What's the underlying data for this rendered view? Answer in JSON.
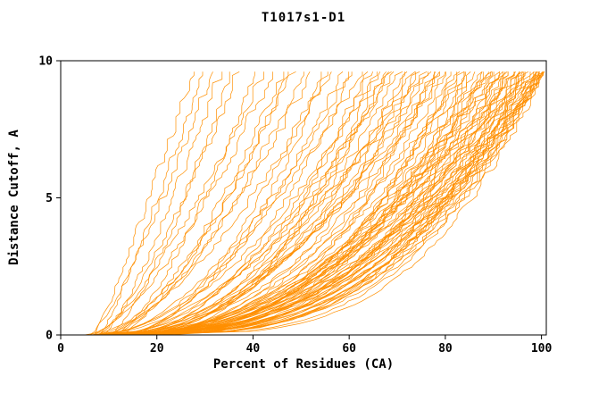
{
  "page": {
    "title": "T1017s1-D1"
  },
  "chart_data": {
    "type": "line",
    "title": "T1017s1-D1",
    "xlabel": "Percent of Residues (CA)",
    "ylabel": "Distance Cutoff, A",
    "xlim": [
      0,
      101
    ],
    "ylim": [
      0,
      10
    ],
    "xticks": [
      0,
      20,
      40,
      60,
      80,
      100
    ],
    "yticks": [
      0,
      5,
      10
    ],
    "grid": false,
    "legend": "none",
    "line_color": "#FF8F00",
    "axis_color": "#000000",
    "background_color": "#FFFFFF",
    "curve_y_max": 9.6,
    "curve_note": "Each curve is one model: percent of CA residues (x) under distance cutoff (y). Curves parameterized as [x_at_y0, x_at_ytop, shape_exponent].",
    "curves": [
      [
        7,
        27,
        1.15
      ],
      [
        8,
        29,
        1.2
      ],
      [
        6,
        31,
        1.3
      ],
      [
        9,
        33,
        1.25
      ],
      [
        10,
        35,
        1.4
      ],
      [
        8,
        37,
        1.3
      ],
      [
        11,
        40,
        1.5
      ],
      [
        7,
        42,
        1.35
      ],
      [
        6,
        44,
        1.5
      ],
      [
        9,
        46,
        1.6
      ],
      [
        12,
        48,
        1.4
      ],
      [
        8,
        50,
        1.7
      ],
      [
        10,
        52,
        1.5
      ],
      [
        13,
        54,
        1.8
      ],
      [
        7,
        56,
        1.6
      ],
      [
        11,
        58,
        1.9
      ],
      [
        9,
        60,
        1.7
      ],
      [
        14,
        60,
        2.0
      ],
      [
        5,
        47,
        1.9
      ],
      [
        10,
        55,
        2.1
      ],
      [
        8,
        62,
        1.8
      ],
      [
        12,
        64,
        2.0
      ],
      [
        6,
        66,
        1.9
      ],
      [
        10,
        68,
        2.2
      ],
      [
        15,
        70,
        2.0
      ],
      [
        9,
        72,
        2.3
      ],
      [
        13,
        74,
        2.1
      ],
      [
        7,
        75,
        1.8
      ],
      [
        11,
        63,
        2.4
      ],
      [
        14,
        67,
        2.2
      ],
      [
        8,
        71,
        2.5
      ],
      [
        12,
        69,
        1.7
      ],
      [
        10,
        73,
        2.0
      ],
      [
        16,
        65,
        2.3
      ],
      [
        9,
        76,
        2.2
      ],
      [
        12,
        78,
        2.4
      ],
      [
        7,
        80,
        2.0
      ],
      [
        14,
        82,
        2.6
      ],
      [
        10,
        84,
        2.3
      ],
      [
        8,
        86,
        2.8
      ],
      [
        13,
        88,
        2.5
      ],
      [
        11,
        90,
        2.2
      ],
      [
        15,
        77,
        2.7
      ],
      [
        6,
        79,
        2.4
      ],
      [
        9,
        81,
        3.0
      ],
      [
        12,
        83,
        2.1
      ],
      [
        16,
        85,
        2.6
      ],
      [
        10,
        87,
        2.9
      ],
      [
        7,
        89,
        2.3
      ],
      [
        13,
        76,
        2.0
      ],
      [
        11,
        80,
        2.5
      ],
      [
        8,
        84,
        2.7
      ],
      [
        14,
        88,
        3.1
      ],
      [
        9,
        90,
        2.4
      ],
      [
        10,
        91,
        2.6
      ],
      [
        12,
        92,
        2.3
      ],
      [
        8,
        93,
        2.9
      ],
      [
        15,
        94,
        2.5
      ],
      [
        11,
        95,
        3.0
      ],
      [
        9,
        96,
        2.7
      ],
      [
        13,
        97,
        2.4
      ],
      [
        7,
        98,
        3.2
      ],
      [
        10,
        99,
        2.8
      ],
      [
        12,
        100,
        2.5
      ],
      [
        14,
        100,
        3.0
      ],
      [
        8,
        100,
        3.4
      ],
      [
        11,
        100,
        2.2
      ],
      [
        9,
        99,
        3.1
      ],
      [
        16,
        98,
        2.6
      ],
      [
        10,
        97,
        2.9
      ],
      [
        13,
        96,
        3.3
      ],
      [
        6,
        100,
        2.7
      ],
      [
        12,
        99,
        2.4
      ],
      [
        15,
        100,
        3.5
      ],
      [
        9,
        94,
        2.2
      ],
      [
        11,
        93,
        3.0
      ],
      [
        18,
        100,
        2.8
      ],
      [
        20,
        100,
        2.5
      ],
      [
        17,
        99,
        3.2
      ],
      [
        19,
        98,
        2.3
      ],
      [
        22,
        100,
        2.4
      ],
      [
        10,
        98,
        2.1
      ],
      [
        13,
        99,
        2.7
      ],
      [
        9,
        97,
        2.5
      ],
      [
        16,
        96,
        3.0
      ],
      [
        11,
        96,
        2.2
      ],
      [
        8,
        95,
        2.6
      ],
      [
        14,
        95,
        3.2
      ],
      [
        12,
        94,
        2.0
      ],
      [
        10,
        93,
        2.8
      ],
      [
        18,
        92,
        2.4
      ],
      [
        7,
        91,
        3.1
      ],
      [
        15,
        91,
        2.2
      ],
      [
        9,
        89,
        2.6
      ],
      [
        12,
        87,
        2.3
      ],
      [
        10,
        85,
        3.0
      ],
      [
        13,
        82,
        2.7
      ],
      [
        8,
        78,
        2.1
      ],
      [
        11,
        74,
        2.5
      ],
      [
        9,
        68,
        2.0
      ]
    ]
  }
}
